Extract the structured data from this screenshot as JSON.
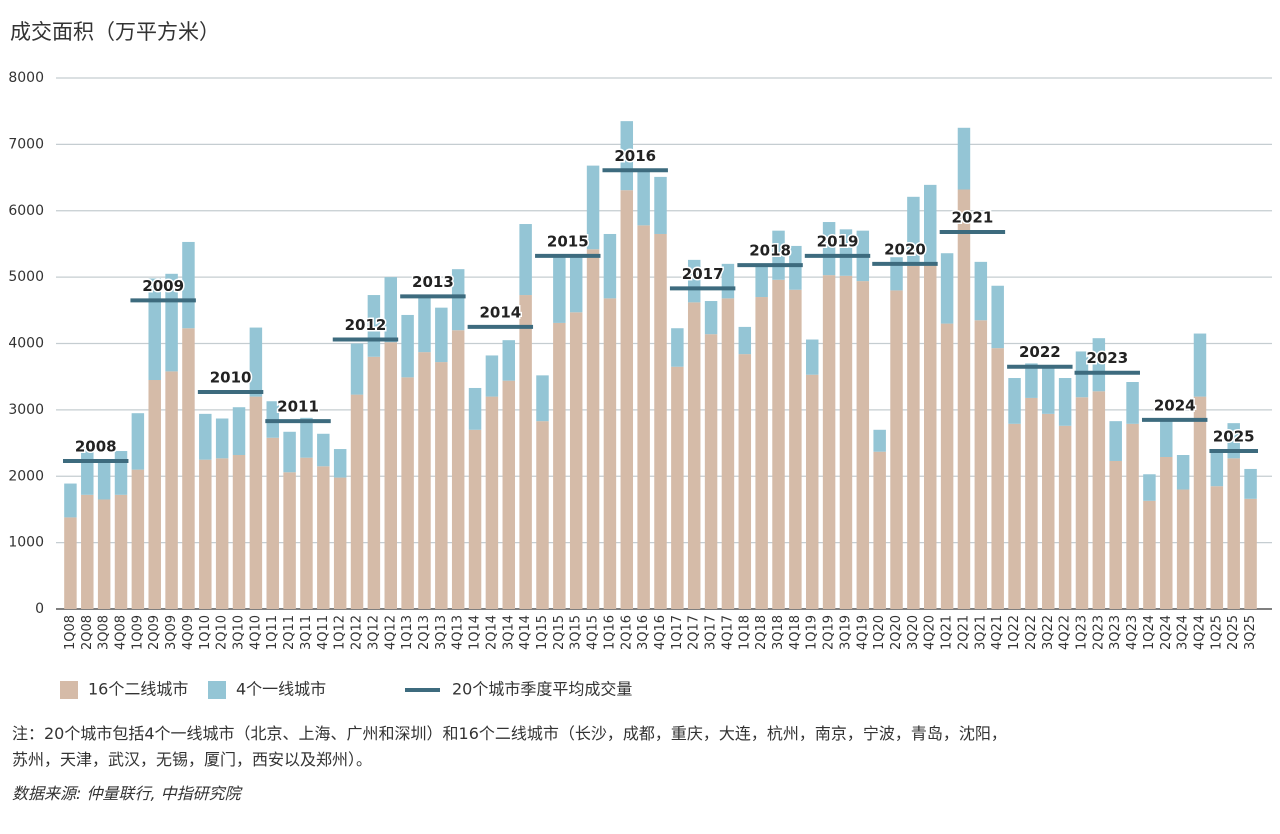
{
  "chart_data": {
    "type": "stacked_bar",
    "title": "成交面积（万平方米）",
    "categories": [
      "1Q08",
      "2Q08",
      "3Q08",
      "4Q08",
      "1Q09",
      "2Q09",
      "3Q09",
      "4Q09",
      "1Q10",
      "2Q10",
      "3Q10",
      "4Q10",
      "1Q11",
      "2Q11",
      "3Q11",
      "4Q11",
      "1Q12",
      "2Q12",
      "3Q12",
      "4Q12",
      "1Q13",
      "2Q13",
      "3Q13",
      "4Q13",
      "1Q14",
      "2Q14",
      "3Q14",
      "4Q14",
      "1Q15",
      "2Q15",
      "3Q15",
      "4Q15",
      "1Q16",
      "2Q16",
      "3Q16",
      "4Q16",
      "1Q17",
      "2Q17",
      "3Q17",
      "4Q17",
      "1Q18",
      "2Q18",
      "3Q18",
      "4Q18",
      "1Q19",
      "2Q19",
      "3Q19",
      "4Q19",
      "1Q20",
      "2Q20",
      "3Q20",
      "4Q20",
      "1Q21",
      "2Q21",
      "3Q21",
      "4Q21",
      "1Q22",
      "2Q22",
      "3Q22",
      "4Q22",
      "1Q23",
      "2Q23",
      "3Q23",
      "4Q23",
      "1Q24",
      "2Q24",
      "3Q24",
      "4Q24",
      "1Q25",
      "2Q25",
      "3Q25"
    ],
    "series": [
      {
        "name": "16个二线城市",
        "color": "#d5bba8",
        "values": [
          1380,
          1720,
          1650,
          1720,
          2100,
          3450,
          3580,
          4230,
          2250,
          2270,
          2320,
          3200,
          2580,
          2060,
          2280,
          2150,
          1980,
          3230,
          3800,
          4020,
          3490,
          3870,
          3720,
          4200,
          2700,
          3200,
          3440,
          4730,
          2830,
          4310,
          4470,
          5420,
          4680,
          6310,
          5780,
          5650,
          3650,
          4620,
          4140,
          4680,
          3840,
          4700,
          4960,
          4810,
          3530,
          5030,
          5020,
          4940,
          2370,
          4800,
          5170,
          5190,
          4300,
          6320,
          4350,
          3930,
          2790,
          3180,
          2940,
          2760,
          3190,
          3280,
          2230,
          2790,
          1630,
          2290,
          1800,
          3200,
          1850,
          2270,
          1660
        ]
      },
      {
        "name": "4个一线城市",
        "color": "#94c5d5",
        "values": [
          510,
          730,
          580,
          660,
          850,
          1530,
          1470,
          1300,
          690,
          600,
          720,
          1040,
          550,
          610,
          600,
          490,
          430,
          770,
          930,
          980,
          940,
          830,
          820,
          920,
          630,
          620,
          610,
          1070,
          690,
          990,
          850,
          1260,
          970,
          1040,
          840,
          860,
          580,
          640,
          500,
          520,
          410,
          500,
          740,
          660,
          530,
          800,
          700,
          760,
          330,
          500,
          1040,
          1200,
          1060,
          930,
          880,
          940,
          690,
          520,
          710,
          720,
          690,
          800,
          600,
          630,
          400,
          540,
          520,
          950,
          530,
          530,
          450
        ]
      }
    ],
    "average": {
      "name": "20个城市季度平均成交量",
      "color": "#3d6b7e",
      "years": [
        "2008",
        "2009",
        "2010",
        "2011",
        "2012",
        "2013",
        "2014",
        "2015",
        "2016",
        "2017",
        "2018",
        "2019",
        "2020",
        "2021",
        "2022",
        "2023",
        "2024",
        "2025"
      ],
      "values": [
        2230,
        4650,
        3270,
        2830,
        4060,
        4710,
        4250,
        5320,
        6610,
        4830,
        5180,
        5320,
        5200,
        5680,
        3650,
        3560,
        2850,
        2380
      ]
    },
    "ylim": [
      0,
      8000
    ],
    "yticks": [
      0,
      1000,
      2000,
      3000,
      4000,
      5000,
      6000,
      7000,
      8000
    ],
    "grid": true,
    "note": [
      "注：20个城市包括4个一线城市（北京、上海、广州和深圳）和16个二线城市（长沙，成都，重庆，大连，杭州，南京，宁波，青岛，沈阳，",
      "苏州，天津，武汉，无锡，厦门，西安以及郑州）。"
    ],
    "source": "数据来源: 仲量联行, 中指研究院"
  }
}
